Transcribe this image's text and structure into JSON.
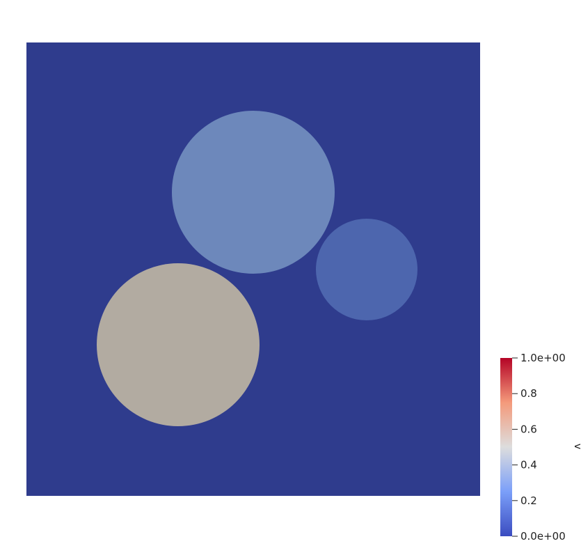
{
  "scene": {
    "background_color": "#ffffff",
    "domain_fill_color": "#2f3c8d",
    "circles": [
      {
        "id": "circle-top",
        "value": 0.33,
        "color": "#6d88bb"
      },
      {
        "id": "circle-right",
        "value": 0.12,
        "color": "#4d66ae"
      },
      {
        "id": "circle-bottom-left",
        "value": 0.54,
        "color": "#b2aba1"
      }
    ]
  },
  "colorbar": {
    "variable_label": "v",
    "range": [
      0.0,
      1.0
    ],
    "colormap": "coolwarm",
    "stops": [
      {
        "value": 0.0,
        "color": "#3b4cc0"
      },
      {
        "value": 0.25,
        "color": "#7b9ff9"
      },
      {
        "value": 0.5,
        "color": "#dddddd"
      },
      {
        "value": 0.75,
        "color": "#f49a7b"
      },
      {
        "value": 1.0,
        "color": "#b40426"
      }
    ],
    "ticks": [
      {
        "value": 1.0,
        "label": "1.0e+00"
      },
      {
        "value": 0.8,
        "label": "0.8"
      },
      {
        "value": 0.6,
        "label": "0.6"
      },
      {
        "value": 0.4,
        "label": "0.4"
      },
      {
        "value": 0.2,
        "label": "0.2"
      },
      {
        "value": 0.0,
        "label": "0.0e+00"
      }
    ]
  }
}
